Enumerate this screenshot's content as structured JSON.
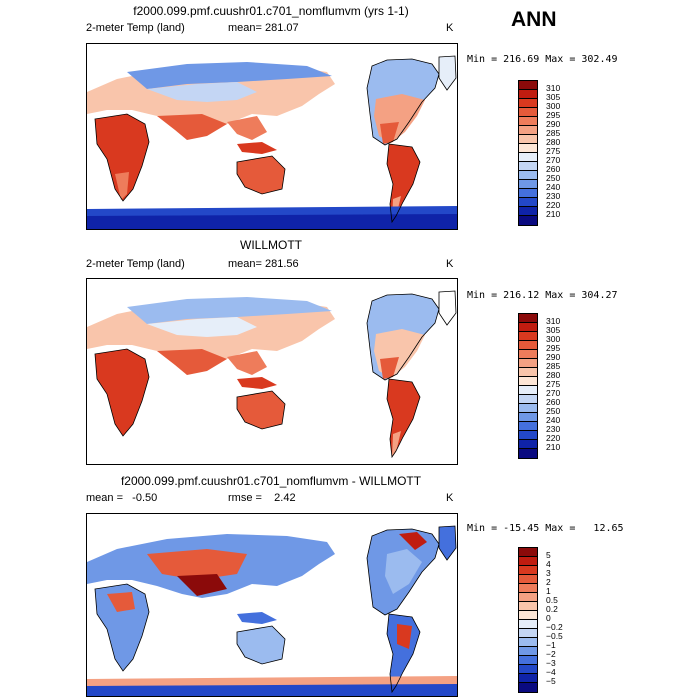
{
  "season": "ANN",
  "panels": [
    {
      "title": "f2000.099.pmf.cuushr01.c701_nomflumvm (yrs 1-1)",
      "variable": "2-meter Temp (land)",
      "mean_label": "mean= 281.07",
      "units": "K",
      "minmax": "Min = 216.69 Max = 302.49",
      "mode": "abs"
    },
    {
      "title": "WILLMOTT",
      "variable": "2-meter Temp (land)",
      "mean_label": "mean= 281.56",
      "units": "K",
      "minmax": "Min = 216.12 Max = 304.27",
      "mode": "abs"
    },
    {
      "title": "f2000.099.pmf.cuushr01.c701_nomflumvm - WILLMOTT",
      "mean_label": "mean =   -0.50",
      "rmse_label": "rmse =    2.42",
      "units": "K",
      "minmax": "Min = -15.45 Max =   12.65",
      "mode": "diff"
    }
  ],
  "colorbar_abs": {
    "labels": [
      "310",
      "305",
      "300",
      "295",
      "290",
      "285",
      "280",
      "275",
      "270",
      "260",
      "250",
      "240",
      "230",
      "220",
      "210"
    ],
    "colors": [
      "#8b0a0a",
      "#c01c10",
      "#d9391f",
      "#e55a3a",
      "#ee7c5b",
      "#f4a183",
      "#f9c5ab",
      "#fde6d6",
      "#e6eef9",
      "#c4d6f4",
      "#9bbbef",
      "#6f98e6",
      "#4470dd",
      "#2348c8",
      "#0f23a8",
      "#0a0a80"
    ]
  },
  "colorbar_diff": {
    "labels": [
      "5",
      "4",
      "3",
      "2",
      "1",
      "0.5",
      "0.2",
      "0",
      "−0.2",
      "−0.5",
      "−1",
      "−2",
      "−3",
      "−4",
      "−5"
    ],
    "colors": [
      "#8b0a0a",
      "#c01c10",
      "#d9391f",
      "#e55a3a",
      "#ee7c5b",
      "#f4a183",
      "#f9c5ab",
      "#fde6d6",
      "#e6eef9",
      "#c4d6f4",
      "#9bbbef",
      "#6f98e6",
      "#4470dd",
      "#2348c8",
      "#0f23a8",
      "#0a0a80"
    ]
  }
}
